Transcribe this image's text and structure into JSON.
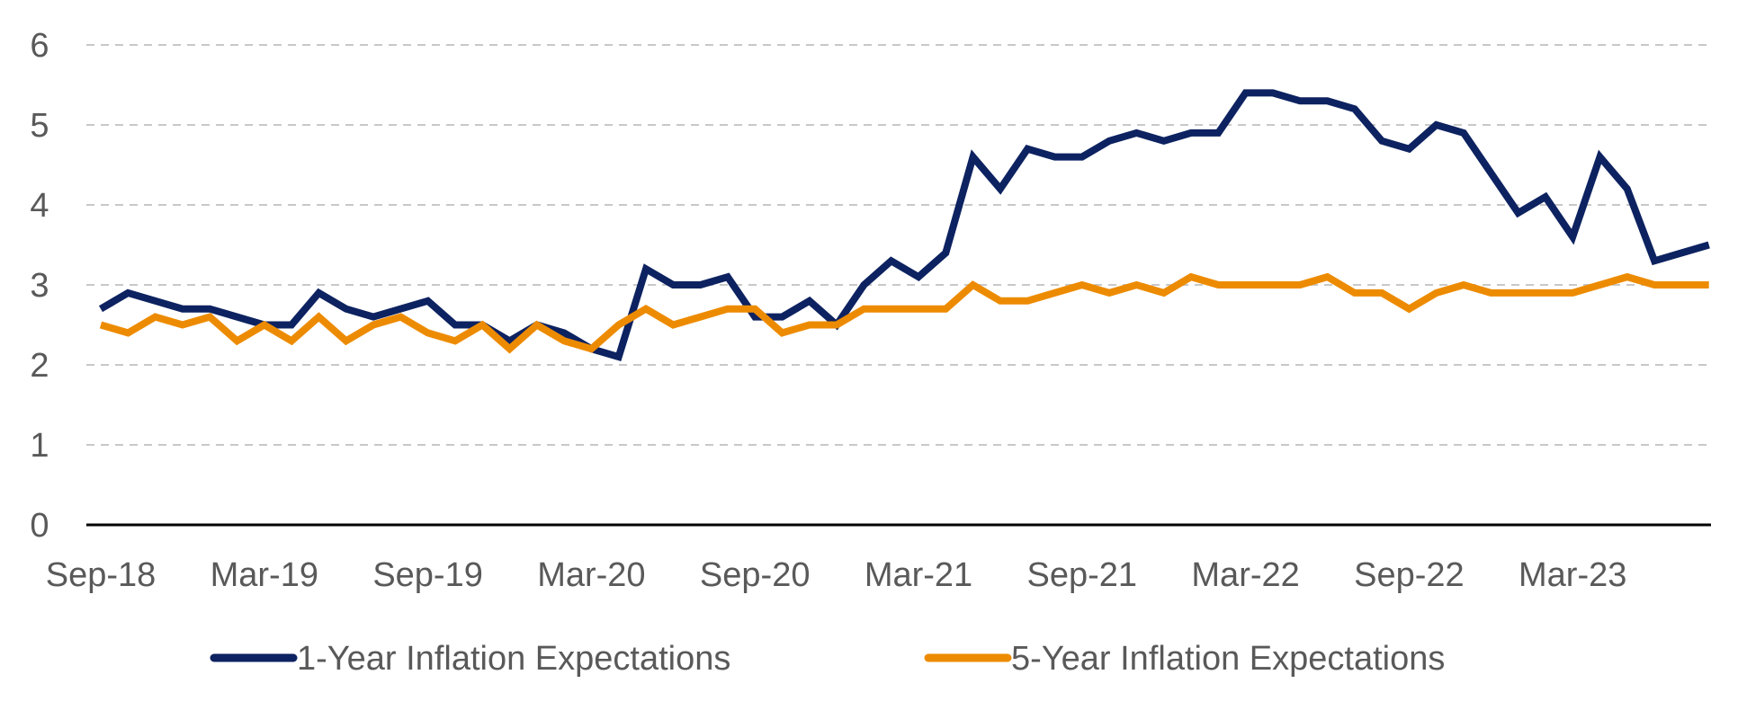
{
  "chart_data": {
    "type": "line",
    "title": "",
    "xlabel": "",
    "ylabel": "",
    "ylim": [
      0,
      6
    ],
    "y_ticks": [
      "0",
      "1",
      "2",
      "3",
      "4",
      "5",
      "6"
    ],
    "x_tick_labels": [
      "Sep-18",
      "Mar-19",
      "Sep-19",
      "Mar-20",
      "Sep-20",
      "Mar-21",
      "Sep-21",
      "Mar-22",
      "Sep-22",
      "Mar-23"
    ],
    "grid": "horizontal dashed",
    "legend_position": "bottom",
    "x": [
      "Sep-18",
      "Oct-18",
      "Nov-18",
      "Dec-18",
      "Jan-19",
      "Feb-19",
      "Mar-19",
      "Apr-19",
      "May-19",
      "Jun-19",
      "Jul-19",
      "Aug-19",
      "Sep-19",
      "Oct-19",
      "Nov-19",
      "Dec-19",
      "Jan-20",
      "Feb-20",
      "Mar-20",
      "Apr-20",
      "May-20",
      "Jun-20",
      "Jul-20",
      "Aug-20",
      "Sep-20",
      "Oct-20",
      "Nov-20",
      "Dec-20",
      "Jan-21",
      "Feb-21",
      "Mar-21",
      "Apr-21",
      "May-21",
      "Jun-21",
      "Jul-21",
      "Aug-21",
      "Sep-21",
      "Oct-21",
      "Nov-21",
      "Dec-21",
      "Jan-22",
      "Feb-22",
      "Mar-22",
      "Apr-22",
      "May-22",
      "Jun-22",
      "Jul-22",
      "Aug-22",
      "Sep-22",
      "Oct-22",
      "Nov-22",
      "Dec-22",
      "Jan-23",
      "Feb-23",
      "Mar-23",
      "Apr-23",
      "May-23",
      "Jun-23",
      "Jul-23",
      "Aug-23"
    ],
    "series": [
      {
        "name": "1-Year Inflation Expectations",
        "color": "#0d2260",
        "values": [
          2.7,
          2.9,
          2.8,
          2.7,
          2.7,
          2.6,
          2.5,
          2.5,
          2.9,
          2.7,
          2.6,
          2.7,
          2.8,
          2.5,
          2.5,
          2.3,
          2.5,
          2.4,
          2.2,
          2.1,
          3.2,
          3.0,
          3.0,
          3.1,
          2.6,
          2.6,
          2.8,
          2.5,
          3.0,
          3.3,
          3.1,
          3.4,
          4.6,
          4.2,
          4.7,
          4.6,
          4.6,
          4.8,
          4.9,
          4.8,
          4.9,
          4.9,
          5.4,
          5.4,
          5.3,
          5.3,
          5.2,
          4.8,
          4.7,
          5.0,
          4.9,
          4.4,
          3.9,
          4.1,
          3.6,
          4.6,
          4.2,
          3.3,
          3.4,
          3.5
        ]
      },
      {
        "name": "5-Year Inflation Expectations",
        "color": "#ed8b00",
        "values": [
          2.5,
          2.4,
          2.6,
          2.5,
          2.6,
          2.3,
          2.5,
          2.3,
          2.6,
          2.3,
          2.5,
          2.6,
          2.4,
          2.3,
          2.5,
          2.2,
          2.5,
          2.3,
          2.2,
          2.5,
          2.7,
          2.5,
          2.6,
          2.7,
          2.7,
          2.4,
          2.5,
          2.5,
          2.7,
          2.7,
          2.7,
          2.7,
          3.0,
          2.8,
          2.8,
          2.9,
          3.0,
          2.9,
          3.0,
          2.9,
          3.1,
          3.0,
          3.0,
          3.0,
          3.0,
          3.1,
          2.9,
          2.9,
          2.7,
          2.9,
          3.0,
          2.9,
          2.9,
          2.9,
          2.9,
          3.0,
          3.1,
          3.0,
          3.0,
          3.0
        ]
      }
    ],
    "colors": {
      "gridline": "#c8c8c8",
      "axis": "#000000",
      "text": "#595959"
    }
  }
}
